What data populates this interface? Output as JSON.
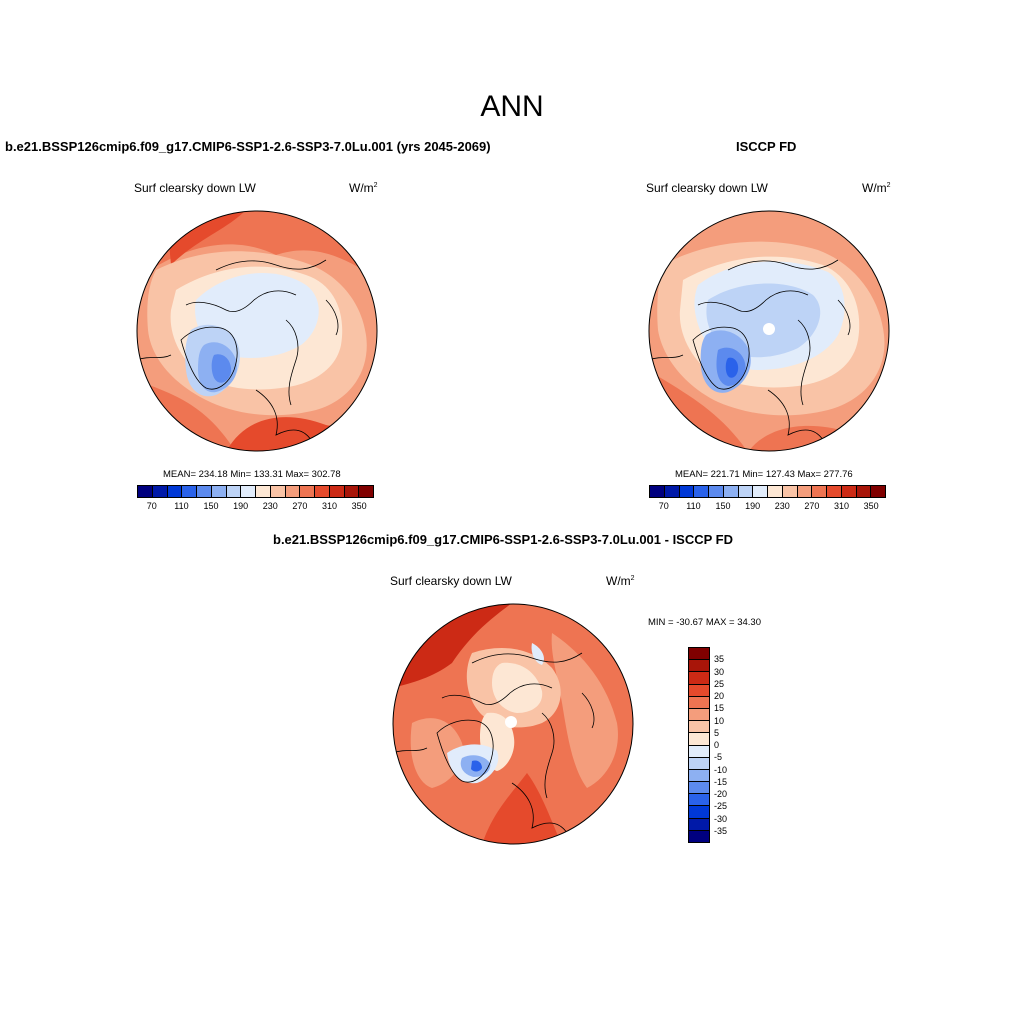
{
  "main_title": "ANN",
  "top_left": {
    "title": "b.e21.BSSP126cmip6.f09_g17.CMIP6-SSP1-2.6-SSP3-7.0Lu.001 (yrs 2045-2069)",
    "variable": "Surf clearsky down LW",
    "units_base": "W/m",
    "units_exp": "2",
    "stats": "MEAN= 234.18  Min= 133.31  Max= 302.78"
  },
  "top_right": {
    "title": "ISCCP FD",
    "variable": "Surf clearsky down LW",
    "units_base": "W/m",
    "units_exp": "2",
    "stats": "MEAN= 221.71  Min= 127.43  Max= 277.76"
  },
  "bottom": {
    "title": "b.e21.BSSP126cmip6.f09_g17.CMIP6-SSP1-2.6-SSP3-7.0Lu.001 - ISCCP FD",
    "variable": "Surf clearsky down LW",
    "units_base": "W/m",
    "units_exp": "2",
    "stats": "MIN = -30.67 MAX =  34.30"
  },
  "colorbar_abs": {
    "colors": [
      "#00007f",
      "#0019a8",
      "#0038d6",
      "#2a62ea",
      "#5c8aee",
      "#8db0f2",
      "#bdd3f6",
      "#e1ecfb",
      "#fde7d4",
      "#f9c3a6",
      "#f49d7c",
      "#ee7452",
      "#e54a2c",
      "#cc2a15",
      "#a81509",
      "#800000"
    ],
    "ticks": [
      "70",
      "110",
      "150",
      "190",
      "230",
      "270",
      "310",
      "350"
    ]
  },
  "colorbar_diff": {
    "colors": [
      "#800000",
      "#a81509",
      "#cc2a15",
      "#e54a2c",
      "#ee7452",
      "#f49d7c",
      "#f9c3a6",
      "#fde7d4",
      "#e1ecfb",
      "#bdd3f6",
      "#8db0f2",
      "#5c8aee",
      "#2a62ea",
      "#0038d6",
      "#0019a8",
      "#00007f"
    ],
    "ticks": [
      "35",
      "30",
      "25",
      "20",
      "15",
      "10",
      "5",
      "0",
      "-5",
      "-10",
      "-15",
      "-20",
      "-25",
      "-30",
      "-35"
    ]
  }
}
